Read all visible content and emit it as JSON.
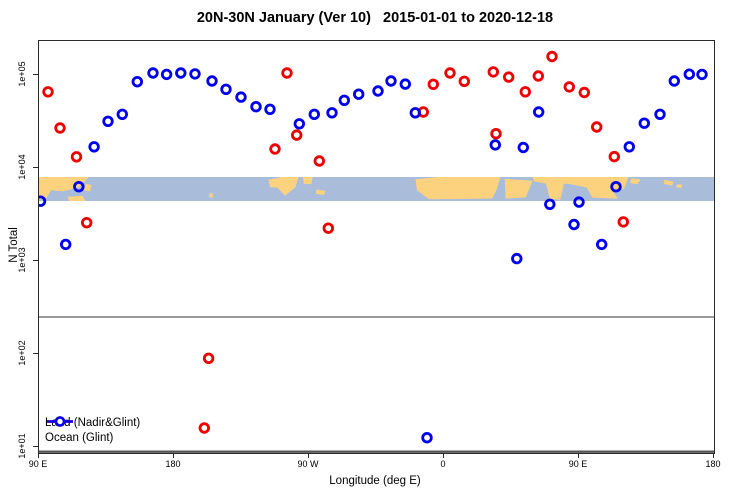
{
  "title": "20N-30N January (Ver 10)   2015-01-01 to 2020-12-18",
  "axes": {
    "y_label": "N Total",
    "x_label": "Longitude (deg E)",
    "y_tick_labels": [
      "1e+01",
      "1e+02",
      "1e+03",
      "1e+04",
      "1e+05"
    ],
    "x_tick_labels": [
      "90 E",
      "180",
      "90 W",
      "0",
      "90 E",
      "180"
    ]
  },
  "legend": {
    "items": [
      {
        "label": "Land (Nadir&Glint)",
        "color": "#ee0000"
      },
      {
        "label": "Ocean (Glint)",
        "color": "#0000ee"
      }
    ]
  },
  "colors": {
    "land_series": "#ee0000",
    "ocean_series": "#0000ee",
    "map_land": "#fcd27f",
    "map_ocean": "#a9bcd9",
    "reference_line": "#999999",
    "axis": "#2b2b2b"
  },
  "chart_data": {
    "type": "scatter",
    "title": "20N-30N January (Ver 10)   2015-01-01 to 2020-12-18",
    "xlabel": "Longitude (deg E)",
    "ylabel": "N Total",
    "x_axis": {
      "range_deg": [
        90,
        540
      ],
      "ticks_deg": [
        90,
        180,
        270,
        360,
        450,
        540
      ],
      "tick_labels": [
        "90 E",
        "180",
        "90 W",
        "0",
        "90 E",
        "180"
      ]
    },
    "y_axis": {
      "scale": "log10",
      "range": [
        10,
        400000
      ],
      "ticks": [
        10,
        100,
        1000,
        10000,
        100000
      ],
      "tick_labels": [
        "1e+01",
        "1e+02",
        "1e+03",
        "1e+04",
        "1e+05"
      ]
    },
    "reference_line_y": 250,
    "map_band": {
      "value_range": [
        4400,
        8000
      ],
      "ocean_color": "#a9bcd9",
      "land_color": "#fcd27f",
      "land_shapes": [
        [
          [
            90,
            0
          ],
          [
            123,
            0
          ],
          [
            117,
            0.42
          ],
          [
            106,
            0.6
          ],
          [
            98,
            0.55
          ],
          [
            95,
            0.88
          ],
          [
            90,
            0.92
          ]
        ],
        [
          [
            109,
            0.82
          ],
          [
            119,
            0.78
          ],
          [
            121,
            1
          ],
          [
            110,
            1
          ]
        ],
        [
          [
            121,
            0.28
          ],
          [
            125,
            0.33
          ],
          [
            124,
            0.6
          ],
          [
            120,
            0.55
          ]
        ],
        [
          [
            203.5,
            0.68
          ],
          [
            205.8,
            0.68
          ],
          [
            205.8,
            0.86
          ],
          [
            203.5,
            0.86
          ]
        ],
        [
          [
            243,
            0.12
          ],
          [
            252,
            0
          ],
          [
            263,
            0
          ],
          [
            261,
            0.42
          ],
          [
            254,
            0.78
          ],
          [
            249,
            0.44
          ],
          [
            244,
            0.42
          ]
        ],
        [
          [
            266,
            0
          ],
          [
            272.5,
            0
          ],
          [
            271.5,
            0.3
          ],
          [
            266.5,
            0.28
          ]
        ],
        [
          [
            275,
            0.52
          ],
          [
            281,
            0.58
          ],
          [
            280,
            0.75
          ],
          [
            274.5,
            0.7
          ]
        ],
        [
          [
            341,
            0.1
          ],
          [
            356,
            0
          ],
          [
            397.5,
            0
          ],
          [
            395,
            0.55
          ],
          [
            392,
            0.9
          ],
          [
            350,
            0.93
          ],
          [
            342,
            0.55
          ]
        ],
        [
          [
            400.5,
            0.08
          ],
          [
            419,
            0.16
          ],
          [
            414.5,
            0.85
          ],
          [
            401,
            0.9
          ]
        ],
        [
          [
            419,
            0
          ],
          [
            483,
            0
          ],
          [
            480,
            0.5
          ],
          [
            465,
            0.55
          ],
          [
            452,
            0.4
          ],
          [
            443,
            0.28
          ],
          [
            430,
            0.3
          ],
          [
            420,
            0.18
          ]
        ],
        [
          [
            428,
            0.28
          ],
          [
            440,
            0.26
          ],
          [
            437.5,
            0.95
          ],
          [
            430.5,
            0.9
          ]
        ],
        [
          [
            454,
            0.33
          ],
          [
            470,
            0.38
          ],
          [
            476,
            0.9
          ],
          [
            459,
            0.86
          ]
        ],
        [
          [
            485,
            0.05
          ],
          [
            491,
            0.1
          ],
          [
            489,
            0.3
          ],
          [
            484,
            0.25
          ]
        ],
        [
          [
            507,
            0.12
          ],
          [
            513,
            0.2
          ],
          [
            512,
            0.36
          ],
          [
            506.5,
            0.28
          ]
        ],
        [
          [
            515.5,
            0.3
          ],
          [
            519,
            0.33
          ],
          [
            518,
            0.46
          ],
          [
            514.5,
            0.42
          ]
        ]
      ]
    },
    "series": [
      {
        "name": "Land (Nadir&Glint)",
        "color": "#ee0000",
        "marker": "open-circle",
        "points": [
          [
            96,
            66000
          ],
          [
            104,
            26900
          ],
          [
            115,
            13200
          ],
          [
            121.8,
            2580
          ],
          [
            203.1,
            90
          ],
          [
            200.2,
            16
          ],
          [
            255.3,
            105000
          ],
          [
            261.8,
            22600
          ],
          [
            247.3,
            16000
          ],
          [
            276.9,
            11900
          ],
          [
            282.9,
            2250
          ],
          [
            346.2,
            40000
          ],
          [
            352.9,
            79500
          ],
          [
            364,
            105000
          ],
          [
            373.5,
            85500
          ],
          [
            392.9,
            108000
          ],
          [
            394.7,
            23400
          ],
          [
            403.1,
            95000
          ],
          [
            414.2,
            66000
          ],
          [
            422.9,
            97500
          ],
          [
            432,
            158000
          ],
          [
            443.5,
            74500
          ],
          [
            453.5,
            64800
          ],
          [
            461.8,
            27600
          ],
          [
            473.5,
            13250
          ],
          [
            479.5,
            2630
          ]
        ]
      },
      {
        "name": "Ocean (Glint)",
        "color": "#0000ee",
        "marker": "open-circle",
        "points": [
          [
            91,
            4400
          ],
          [
            107.8,
            1510
          ],
          [
            116.5,
            6300
          ],
          [
            126.7,
            16900
          ],
          [
            136,
            31800
          ],
          [
            145.5,
            37800
          ],
          [
            155.5,
            84700
          ],
          [
            166,
            105000
          ],
          [
            175.1,
            101500
          ],
          [
            184.5,
            105000
          ],
          [
            194,
            102800
          ],
          [
            205.3,
            86100
          ],
          [
            214.7,
            70100
          ],
          [
            224.7,
            57800
          ],
          [
            234.7,
            45600
          ],
          [
            244,
            42800
          ],
          [
            263.5,
            29900
          ],
          [
            273.5,
            37800
          ],
          [
            285.3,
            39200
          ],
          [
            293.5,
            53500
          ],
          [
            303.1,
            62100
          ],
          [
            316,
            67300
          ],
          [
            324.7,
            86100
          ],
          [
            334.2,
            79900
          ],
          [
            340.9,
            39200
          ],
          [
            348.7,
            12.6
          ],
          [
            394.2,
            17700
          ],
          [
            408.5,
            1060
          ],
          [
            412.9,
            16600
          ],
          [
            423.1,
            40000
          ],
          [
            430.5,
            4070
          ],
          [
            446.7,
            2470
          ],
          [
            450,
            4300
          ],
          [
            465.1,
            1510
          ],
          [
            474.7,
            6300
          ],
          [
            483.5,
            16900
          ],
          [
            493.5,
            30300
          ],
          [
            504,
            37800
          ],
          [
            513.5,
            86100
          ],
          [
            523.5,
            102000
          ],
          [
            532,
            101500
          ]
        ]
      }
    ]
  }
}
